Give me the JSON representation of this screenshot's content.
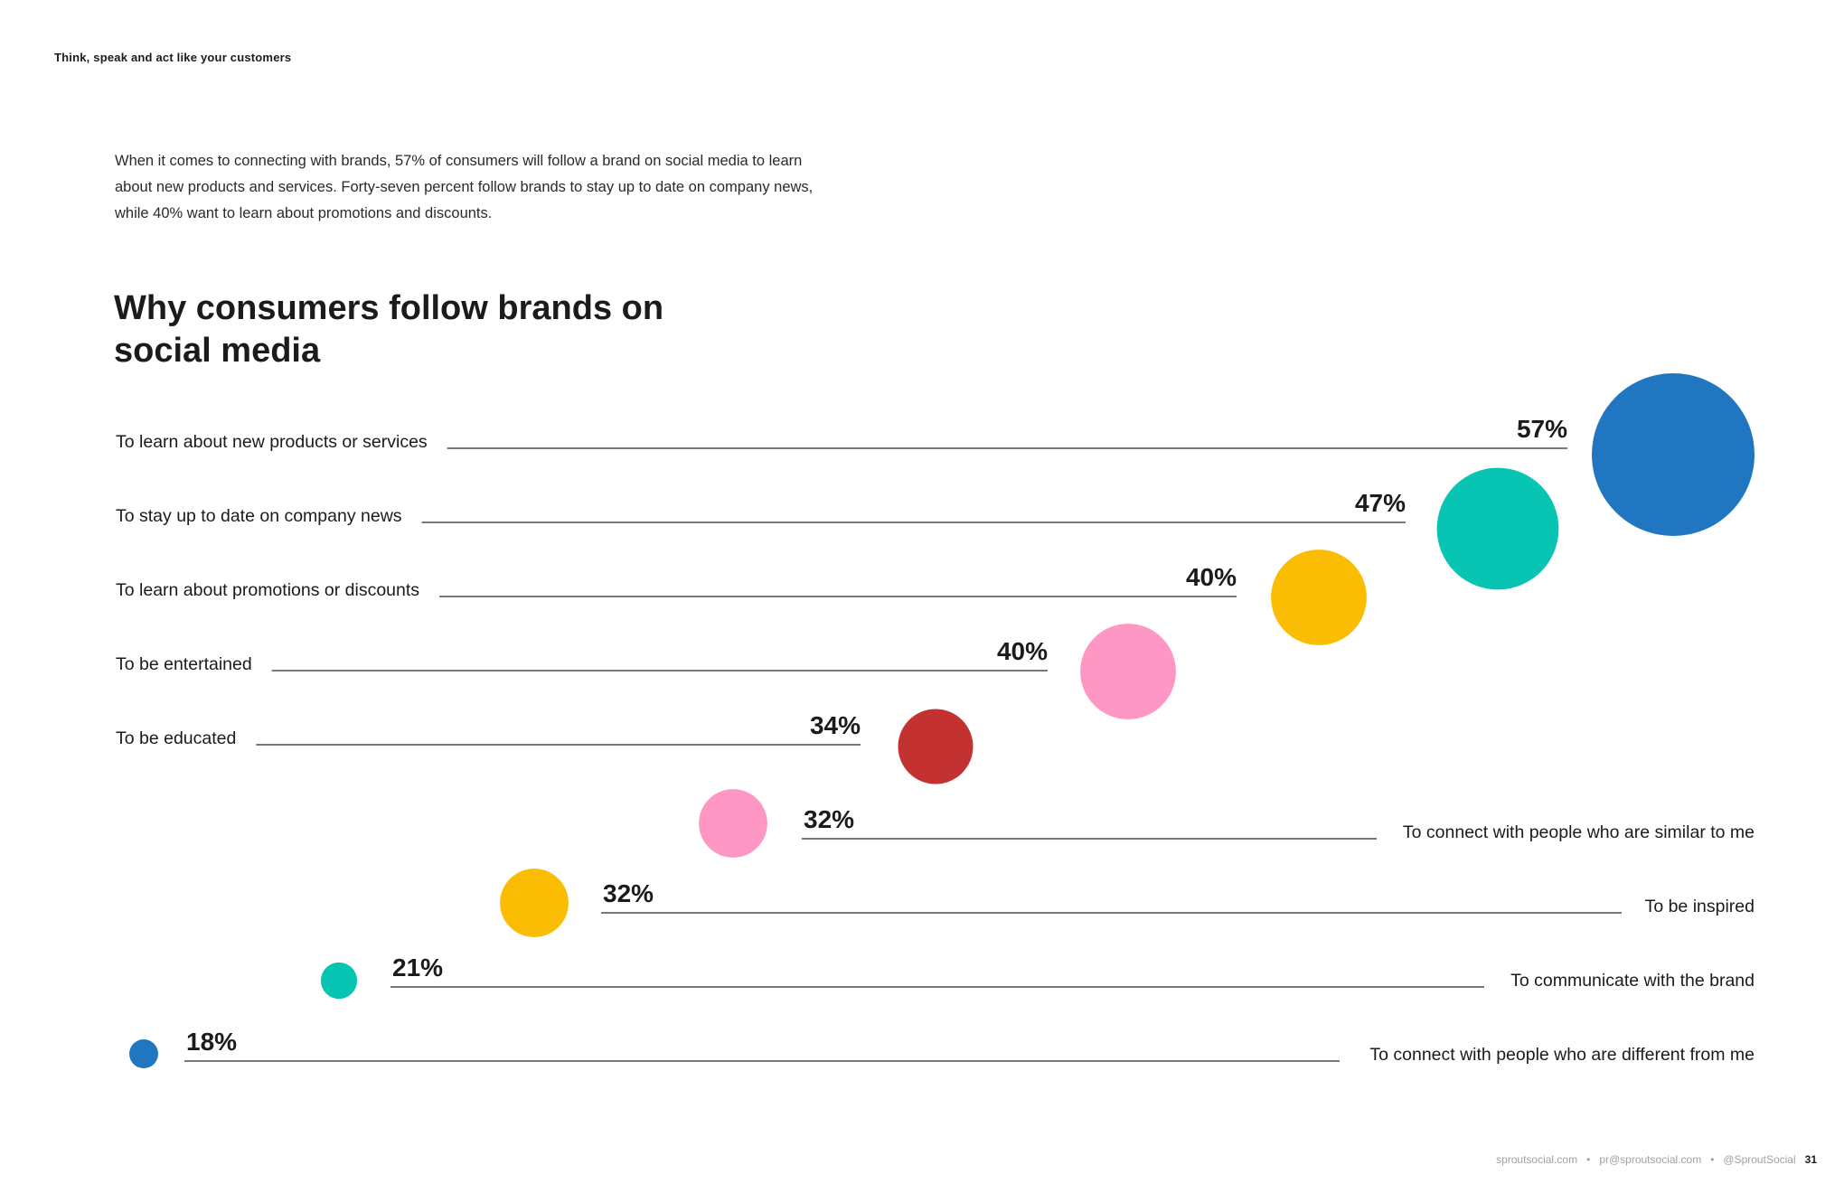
{
  "header": {
    "section_label": "Think, speak and act like your customers"
  },
  "intro": {
    "text": "When it comes to connecting with brands, 57% of consumers will follow a brand on social media to learn about new products and services. Forty-seven percent follow brands to stay up to date on company news, while 40% want to learn about promotions and discounts."
  },
  "colors": {
    "blue": "#2176c2",
    "teal": "#08c4b2",
    "yellow": "#fbbc04",
    "pink": "#ff97c5",
    "red": "#c43131",
    "leader_line": "#44505a"
  },
  "chart_data": {
    "type": "bubble",
    "title": "Why consumers follow brands on social media",
    "unit": "%",
    "categories": [
      "To learn about new products or services",
      "To stay up to date on company news",
      "To learn about promotions or discounts",
      "To be entertained",
      "To be educated",
      "To connect with people who are similar to me",
      "To be inspired",
      "To communicate with the brand",
      "To connect with people who are different from me"
    ],
    "values": [
      57,
      47,
      40,
      40,
      34,
      32,
      32,
      21,
      18
    ],
    "value_labels": [
      "57%",
      "47%",
      "40%",
      "40%",
      "34%",
      "32%",
      "32%",
      "21%",
      "18%"
    ],
    "bubble_colors": [
      "blue",
      "teal",
      "yellow",
      "pink",
      "red",
      "pink",
      "yellow",
      "teal",
      "blue"
    ],
    "label_side": [
      "left",
      "left",
      "left",
      "left",
      "left",
      "right",
      "right",
      "right",
      "right"
    ],
    "grid": false,
    "legend": "none"
  },
  "footer": {
    "website": "sproutsocial.com",
    "email": "pr@sproutsocial.com",
    "handle": "@SproutSocial",
    "separator": "•",
    "page_number": "31"
  }
}
